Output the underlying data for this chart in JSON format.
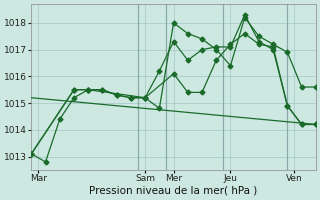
{
  "background_color": "#cce8e0",
  "grid_color": "#aacccc",
  "line_color": "#1a6b2a",
  "vline_color": "#99bbbb",
  "xlabel": "Pression niveau de la mer( hPa )",
  "ylim": [
    1012.5,
    1018.7
  ],
  "yticks": [
    1013,
    1014,
    1015,
    1016,
    1017,
    1018
  ],
  "xlim": [
    0,
    20
  ],
  "day_labels": [
    "Mar",
    "Sam",
    "Mer",
    "Jeu",
    "Ven"
  ],
  "day_positions": [
    0.5,
    8,
    10,
    14,
    18.5
  ],
  "vline_positions": [
    7.5,
    9.5,
    13.5,
    18
  ],
  "series1_x": [
    0,
    1,
    2,
    3,
    4,
    5,
    6,
    7,
    8,
    9,
    10,
    11,
    12,
    13,
    14,
    15,
    16,
    17,
    18,
    19,
    20
  ],
  "series1_y": [
    1013.1,
    1012.8,
    1014.4,
    1015.2,
    1015.5,
    1015.5,
    1015.3,
    1015.2,
    1015.2,
    1014.8,
    1018.0,
    1017.6,
    1017.4,
    1017.0,
    1016.4,
    1018.2,
    1017.5,
    1017.2,
    1016.9,
    1015.6,
    1015.6
  ],
  "series2_x": [
    0,
    3,
    4,
    5,
    6,
    7,
    8,
    9,
    10,
    11,
    12,
    13,
    14,
    15,
    16,
    17,
    18,
    19,
    20
  ],
  "series2_y": [
    1013.1,
    1015.5,
    1015.5,
    1015.5,
    1015.3,
    1015.2,
    1015.2,
    1016.2,
    1017.3,
    1016.6,
    1017.0,
    1017.1,
    1017.1,
    1018.3,
    1017.3,
    1017.0,
    1014.9,
    1014.2,
    1014.2
  ],
  "series3_x": [
    0,
    3,
    4,
    8,
    10,
    11,
    12,
    13,
    14,
    15,
    16,
    17,
    18,
    19,
    20
  ],
  "series3_y": [
    1013.1,
    1015.5,
    1015.5,
    1015.2,
    1016.1,
    1015.4,
    1015.4,
    1016.6,
    1017.2,
    1017.6,
    1017.2,
    1017.1,
    1014.9,
    1014.2,
    1014.2
  ],
  "trend_x": [
    0,
    20
  ],
  "trend_y": [
    1015.2,
    1014.2
  ],
  "xlabel_fontsize": 7.5,
  "tick_fontsize": 6.5
}
